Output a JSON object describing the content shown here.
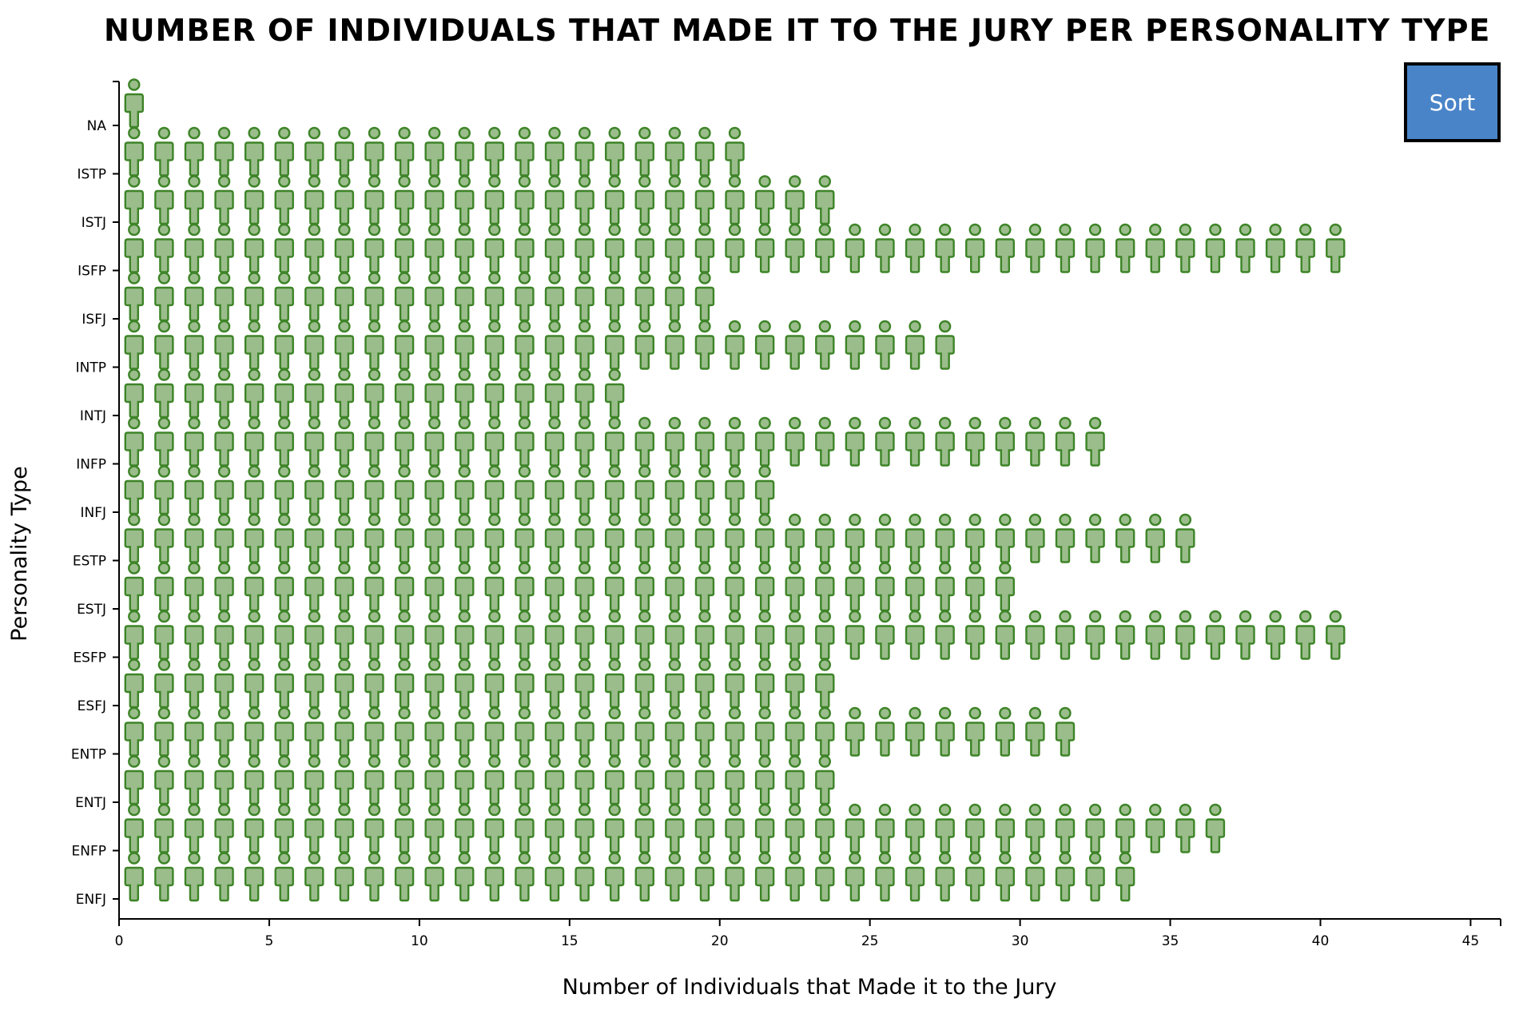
{
  "title": "NUMBER OF INDIVIDUALS THAT MADE IT TO THE JURY PER PERSONALITY TYPE",
  "sort_button_label": "Sort",
  "colors": {
    "icon_fill": "#9bbd8c",
    "icon_stroke": "#3d8427",
    "button": "#4a84c8"
  },
  "chart_data": {
    "type": "bar",
    "glyph": "person-icon",
    "title": "NUMBER OF INDIVIDUALS THAT MADE IT TO THE JURY PER PERSONALITY TYPE",
    "xlabel": "Number of Individuals that Made it to the Jury",
    "ylabel": "Personality Type",
    "xlim": [
      0,
      46
    ],
    "xticks": [
      0,
      5,
      10,
      15,
      20,
      25,
      30,
      35,
      40,
      45
    ],
    "categories": [
      "NA",
      "ISTP",
      "ISTJ",
      "ISFP",
      "ISFJ",
      "INTP",
      "INTJ",
      "INFP",
      "INFJ",
      "ESTP",
      "ESTJ",
      "ESFP",
      "ESFJ",
      "ENTP",
      "ENTJ",
      "ENFP",
      "ENFJ"
    ],
    "values": [
      1,
      21,
      24,
      41,
      20,
      28,
      17,
      33,
      22,
      36,
      30,
      41,
      24,
      32,
      24,
      37,
      34
    ]
  }
}
